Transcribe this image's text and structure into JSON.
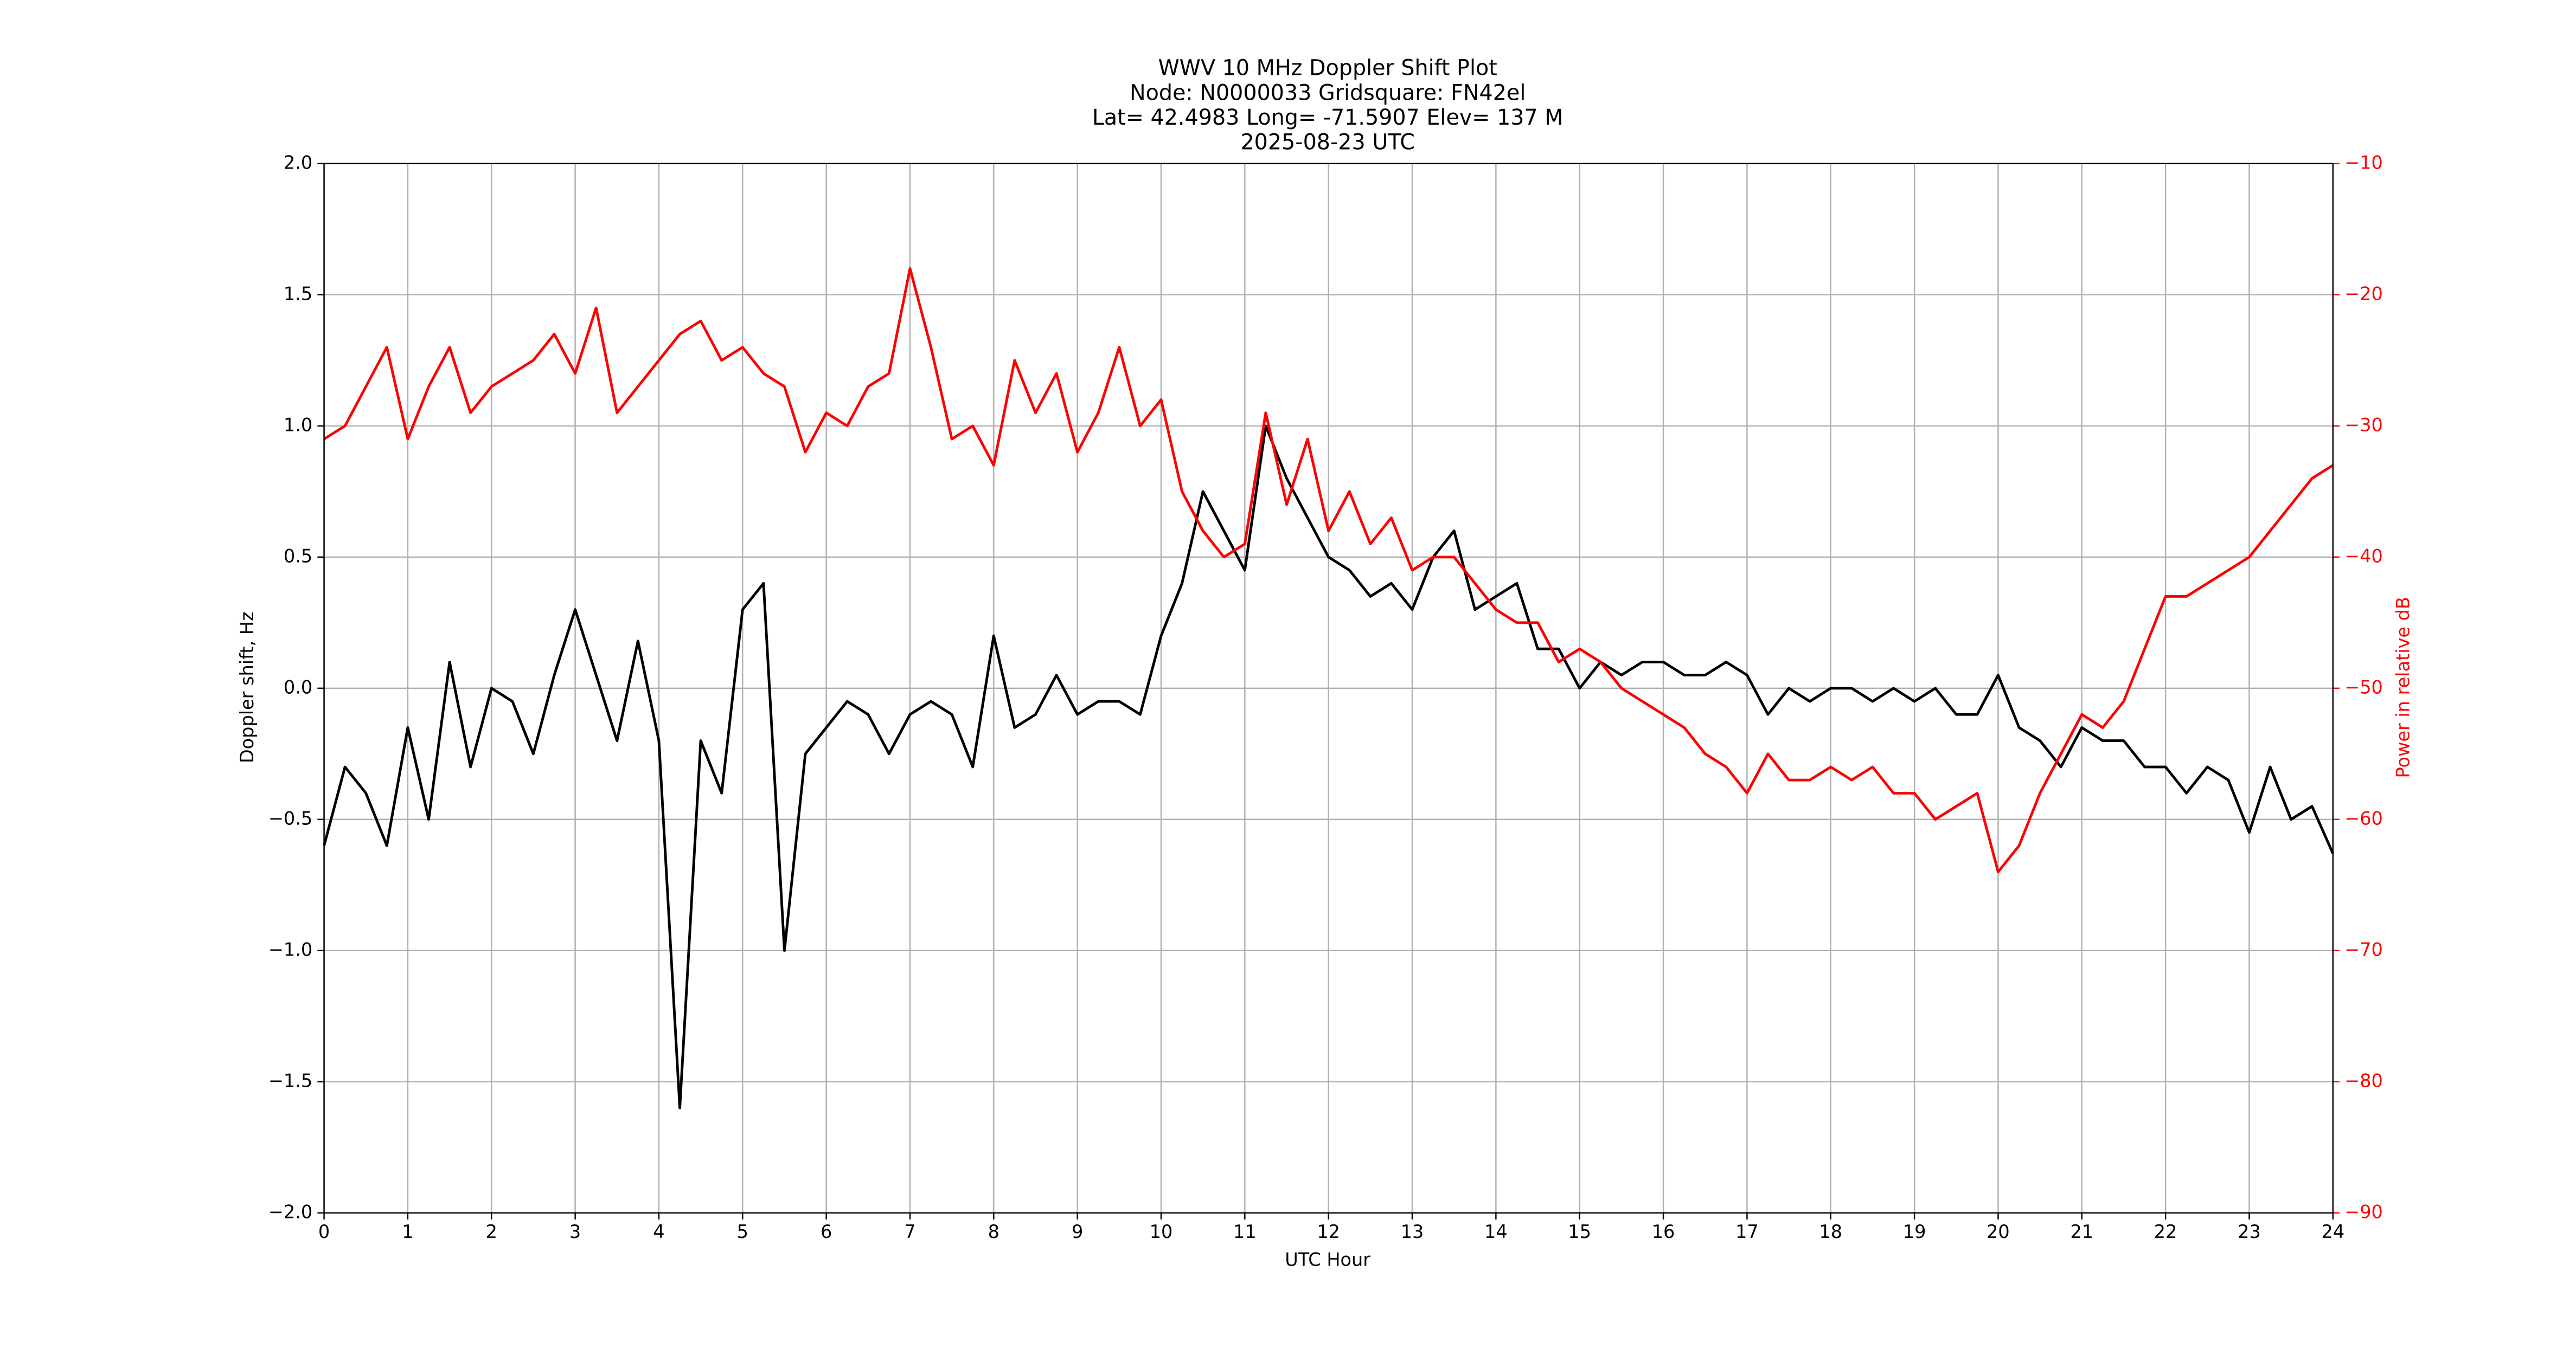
{
  "chart_data": {
    "type": "line",
    "title": [
      "WWV 10 MHz Doppler Shift Plot",
      "Node:  N0000033     Gridsquare:  FN42el",
      "Lat= 42.4983    Long= -71.5907    Elev= 137 M",
      "2025-08-23  UTC"
    ],
    "x_label": "UTC Hour",
    "y_label": "Doppler shift, Hz",
    "y2_label": "Power in relative dB",
    "y2_color": "#ff0000",
    "x": [
      0,
      0.25,
      0.5,
      0.75,
      1,
      1.25,
      1.5,
      1.75,
      2,
      2.25,
      2.5,
      2.75,
      3,
      3.25,
      3.5,
      3.75,
      4,
      4.25,
      4.5,
      4.75,
      5,
      5.25,
      5.5,
      5.75,
      6,
      6.25,
      6.5,
      6.75,
      7,
      7.25,
      7.5,
      7.75,
      8,
      8.25,
      8.5,
      8.75,
      9,
      9.25,
      9.5,
      9.75,
      10,
      10.25,
      10.5,
      10.75,
      11,
      11.25,
      11.5,
      11.75,
      12,
      12.25,
      12.5,
      12.75,
      13,
      13.25,
      13.5,
      13.75,
      14,
      14.25,
      14.5,
      14.75,
      15,
      15.25,
      15.5,
      15.75,
      16,
      16.25,
      16.5,
      16.75,
      17,
      17.25,
      17.5,
      17.75,
      18,
      18.25,
      18.5,
      18.75,
      19,
      19.25,
      19.5,
      19.75,
      20,
      20.25,
      20.5,
      20.75,
      21,
      21.25,
      21.5,
      21.75,
      22,
      22.25,
      22.5,
      22.75,
      23,
      23.25,
      23.5,
      23.75,
      24
    ],
    "series": [
      {
        "color": "#000000",
        "axis": "y",
        "values": [
          -0.6,
          -0.3,
          -0.4,
          -0.6,
          -0.15,
          -0.5,
          0.1,
          -0.3,
          0.0,
          -0.05,
          -0.25,
          0.05,
          0.3,
          0.05,
          -0.2,
          0.18,
          -0.2,
          -1.6,
          -0.2,
          -0.4,
          0.3,
          0.4,
          -1.0,
          -0.25,
          -0.15,
          -0.05,
          -0.1,
          -0.25,
          -0.1,
          -0.05,
          -0.1,
          -0.3,
          0.2,
          -0.15,
          -0.1,
          0.05,
          -0.1,
          -0.05,
          -0.05,
          -0.1,
          0.2,
          0.4,
          0.75,
          0.6,
          0.45,
          1.0,
          0.8,
          0.65,
          0.5,
          0.45,
          0.35,
          0.4,
          0.3,
          0.5,
          0.6,
          0.3,
          0.35,
          0.4,
          0.15,
          0.15,
          0.0,
          0.1,
          0.05,
          0.1,
          0.1,
          0.05,
          0.05,
          0.1,
          0.05,
          -0.1,
          0.0,
          -0.05,
          0.0,
          0.0,
          -0.05,
          0.0,
          -0.05,
          0.0,
          -0.1,
          -0.1,
          0.05,
          -0.15,
          -0.2,
          -0.3,
          -0.15,
          -0.2,
          -0.2,
          -0.3,
          -0.3,
          -0.4,
          -0.3,
          -0.35,
          -0.55,
          -0.3,
          -0.5,
          -0.45,
          -0.63
        ]
      },
      {
        "color": "#ff0000",
        "axis": "y2",
        "values": [
          -31,
          -30,
          -27,
          -24,
          -31,
          -27,
          -24,
          -29,
          -27,
          -26,
          -25,
          -23,
          -26,
          -21,
          -29,
          -27,
          -25,
          -23,
          -22,
          -25,
          -24,
          -26,
          -27,
          -32,
          -29,
          -30,
          -27,
          -26,
          -18,
          -24,
          -31,
          -30,
          -33,
          -25,
          -29,
          -26,
          -32,
          -29,
          -24,
          -30,
          -28,
          -35,
          -38,
          -40,
          -39,
          -29,
          -36,
          -31,
          -38,
          -35,
          -39,
          -37,
          -41,
          -40,
          -40,
          -42,
          -44,
          -45,
          -45,
          -48,
          -47,
          -48,
          -50,
          -51,
          -52,
          -53,
          -55,
          -56,
          -58,
          -55,
          -57,
          -57,
          -56,
          -57,
          -56,
          -58,
          -58,
          -60,
          -59,
          -58,
          -64,
          -62,
          -58,
          -55,
          -52,
          -53,
          -51,
          -47,
          -43,
          -43,
          -42,
          -41,
          -40,
          -38,
          -36,
          -34,
          -33
        ]
      }
    ],
    "xlim": [
      0,
      24
    ],
    "xticks": [
      0,
      1,
      2,
      3,
      4,
      5,
      6,
      7,
      8,
      9,
      10,
      11,
      12,
      13,
      14,
      15,
      16,
      17,
      18,
      19,
      20,
      21,
      22,
      23,
      24
    ],
    "ylim": [
      -2,
      2
    ],
    "yticks": [
      {
        "value": -2,
        "label": "−2.0"
      },
      {
        "value": -1.5,
        "label": "−1.5"
      },
      {
        "value": -1,
        "label": "−1.0"
      },
      {
        "value": -0.5,
        "label": "−0.5"
      },
      {
        "value": 0,
        "label": "0.0"
      },
      0.5,
      {
        "value": 1,
        "label": "1.0"
      },
      1.5,
      {
        "value": 2,
        "label": "2.0"
      }
    ],
    "y2lim": [
      -90,
      -10
    ],
    "y2ticks": [
      {
        "value": -90,
        "label": "−90"
      },
      {
        "value": -80,
        "label": "−80"
      },
      {
        "value": -70,
        "label": "−70"
      },
      {
        "value": -60,
        "label": "−60"
      },
      {
        "value": -50,
        "label": "−50"
      },
      {
        "value": -40,
        "label": "−40"
      },
      {
        "value": -30,
        "label": "−30"
      },
      {
        "value": -20,
        "label": "−20"
      },
      {
        "value": -10,
        "label": "−10"
      }
    ],
    "grid": true
  }
}
